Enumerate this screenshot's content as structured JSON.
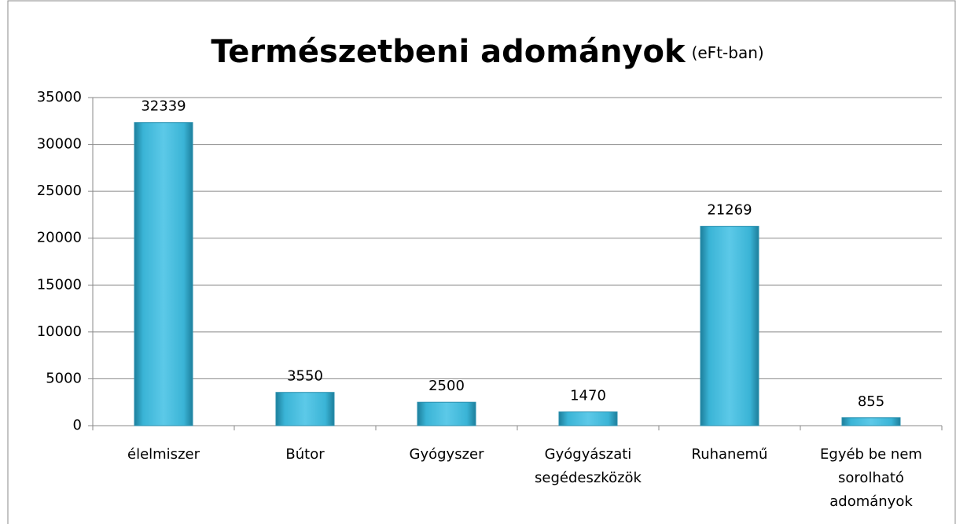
{
  "chart_data": {
    "type": "bar",
    "title": "Természetbeni adományok",
    "subtitle": "(eFt-ban)",
    "categories": [
      [
        "élelmiszer"
      ],
      [
        "Bútor"
      ],
      [
        "Gyógyszer"
      ],
      [
        "Gyógyászati",
        "segédeszközök"
      ],
      [
        "Ruhanemű"
      ],
      [
        "Egyéb be nem",
        "sorolható",
        "adományok"
      ]
    ],
    "values": [
      32339,
      3550,
      2500,
      1470,
      21269,
      855
    ],
    "color": "#3ab4d6",
    "ylim": [
      0,
      35000
    ],
    "yticks": [
      0,
      5000,
      10000,
      15000,
      20000,
      25000,
      30000,
      35000
    ],
    "grid": true
  }
}
